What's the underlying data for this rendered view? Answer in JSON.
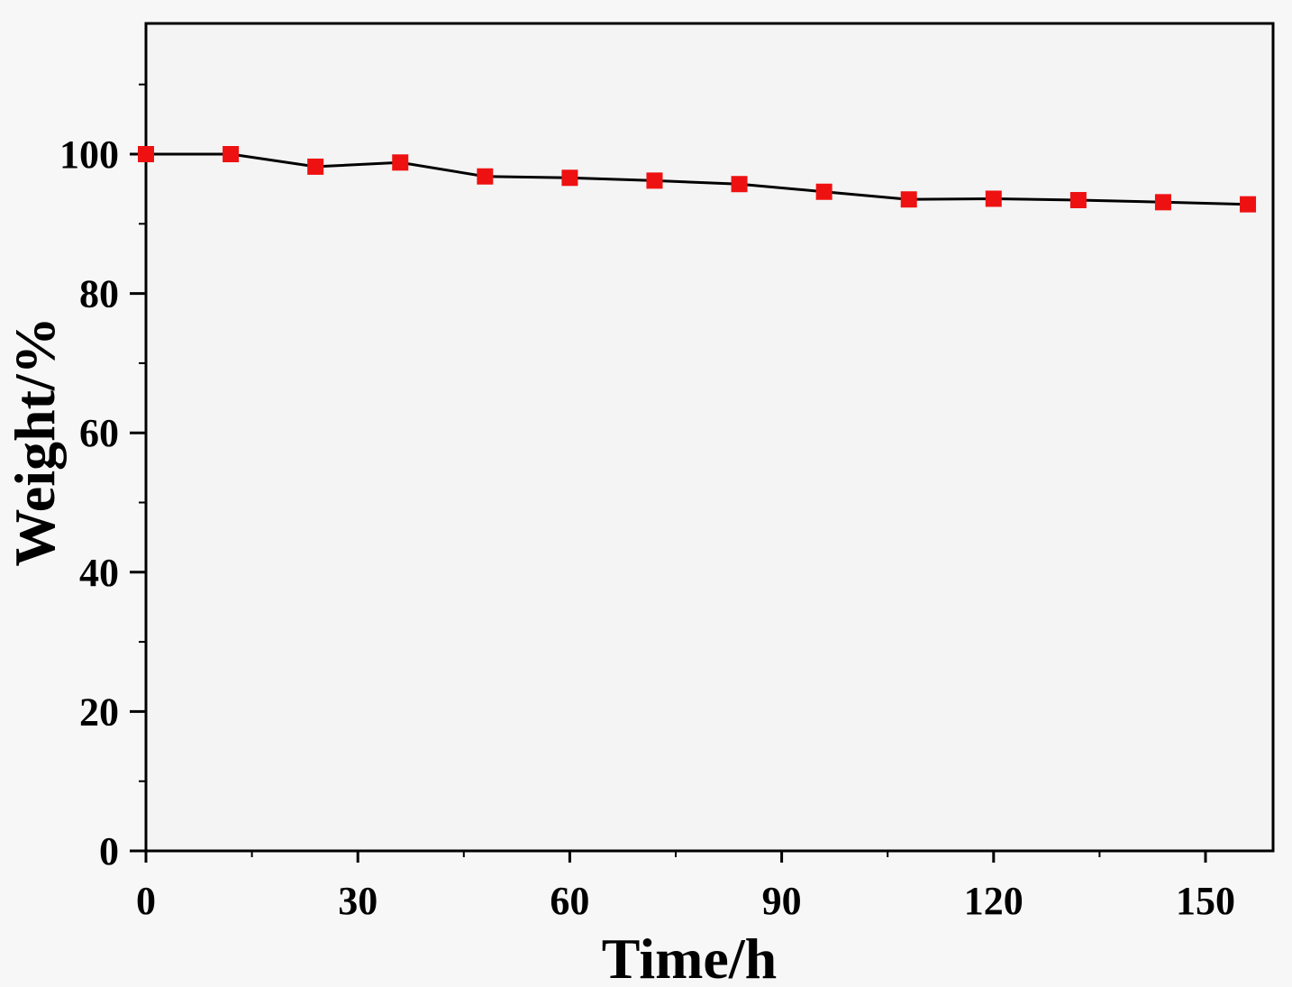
{
  "chart_data": {
    "type": "line",
    "xlabel": "Time/h",
    "ylabel": "Weight/%",
    "xlim": [
      0,
      160
    ],
    "ylim": [
      0,
      120
    ],
    "x_ticks": [
      0,
      30,
      60,
      90,
      120,
      150
    ],
    "x_tick_labels": [
      "0",
      "30",
      "60",
      "90",
      "120",
      "150"
    ],
    "y_ticks": [
      0,
      20,
      40,
      60,
      80,
      100
    ],
    "y_tick_labels": [
      "0",
      "20",
      "40",
      "60",
      "80",
      "100"
    ],
    "grid": false,
    "series": [
      {
        "x": [
          0,
          12,
          24,
          36,
          48,
          60,
          72,
          84,
          96,
          108,
          120,
          132,
          144,
          156
        ],
        "y": [
          100,
          100,
          98.2,
          98.8,
          96.8,
          96.6,
          96.2,
          95.7,
          94.6,
          93.5,
          93.6,
          93.4,
          93.1,
          92.8
        ],
        "line_color": "#000000",
        "marker": "square",
        "marker_color": "#ee1111"
      }
    ]
  }
}
